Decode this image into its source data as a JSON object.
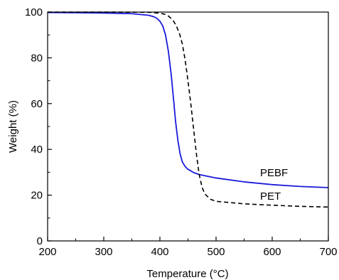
{
  "chart_data": {
    "type": "line",
    "title": "",
    "xlabel": "Temperature (°C)",
    "ylabel": "Weight (%)",
    "xlim": [
      200,
      700
    ],
    "ylim": [
      0,
      100
    ],
    "xticks": [
      200,
      300,
      400,
      500,
      600,
      700
    ],
    "yticks": [
      0,
      20,
      40,
      60,
      80,
      100
    ],
    "grid": false,
    "legend": "inline labels",
    "series": [
      {
        "name": "PEBF",
        "color": "#1a1adc",
        "line_style": "solid",
        "x": [
          200,
          300,
          350,
          380,
          390,
          395,
          400,
          405,
          410,
          415,
          420,
          425,
          428,
          432,
          436,
          440,
          445,
          450,
          460,
          470,
          500,
          550,
          600,
          650,
          700
        ],
        "y": [
          99.8,
          99.6,
          99.3,
          98.6,
          97.9,
          97.2,
          96.0,
          94.0,
          90.0,
          83.0,
          73.0,
          60.0,
          52.0,
          44.0,
          38.0,
          34.5,
          32.5,
          31.3,
          29.9,
          29.0,
          27.5,
          25.8,
          24.6,
          23.8,
          23.3
        ]
      },
      {
        "name": "PET",
        "color": "#000000",
        "line_style": "dashed",
        "x": [
          200,
          300,
          380,
          400,
          410,
          415,
          420,
          425,
          430,
          435,
          440,
          445,
          450,
          455,
          460,
          465,
          470,
          475,
          480,
          490,
          500,
          550,
          600,
          650,
          700
        ],
        "y": [
          100,
          100,
          99.9,
          99.5,
          99.0,
          98.3,
          97.2,
          95.8,
          93.5,
          90.5,
          86.0,
          79.0,
          70.0,
          60.0,
          49.0,
          38.0,
          29.0,
          23.5,
          20.5,
          18.2,
          17.3,
          16.2,
          15.6,
          15.1,
          14.8
        ]
      }
    ]
  }
}
